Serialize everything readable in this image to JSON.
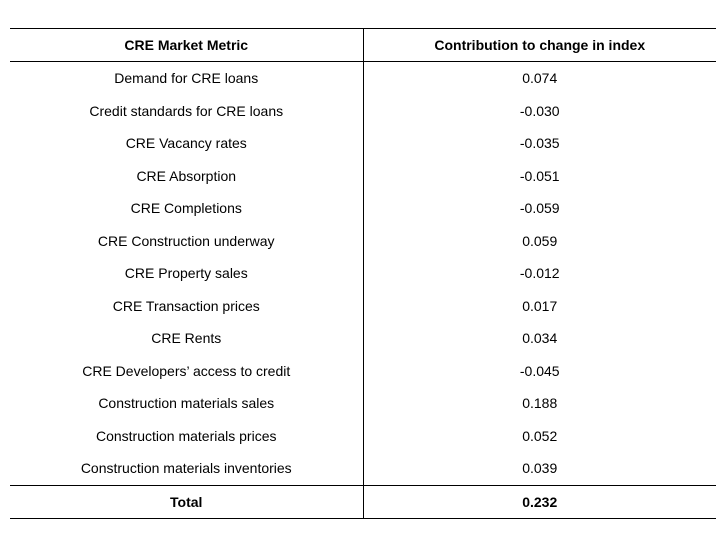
{
  "table": {
    "headers": [
      "CRE Market Metric",
      "Contribution to change in index"
    ],
    "rows": [
      [
        "Demand for CRE loans",
        "0.074"
      ],
      [
        "Credit standards for CRE loans",
        "-0.030"
      ],
      [
        "CRE Vacancy rates",
        "-0.035"
      ],
      [
        "CRE Absorption",
        "-0.051"
      ],
      [
        "CRE Completions",
        "-0.059"
      ],
      [
        "CRE Construction underway",
        "0.059"
      ],
      [
        "CRE Property sales",
        "-0.012"
      ],
      [
        "CRE Transaction prices",
        "0.017"
      ],
      [
        "CRE Rents",
        "0.034"
      ],
      [
        "CRE Developers’ access to credit",
        "-0.045"
      ],
      [
        "Construction materials sales",
        "0.188"
      ],
      [
        "Construction materials prices",
        "0.052"
      ],
      [
        "Construction materials inventories",
        "0.039"
      ]
    ],
    "total": [
      "Total",
      "0.232"
    ]
  }
}
